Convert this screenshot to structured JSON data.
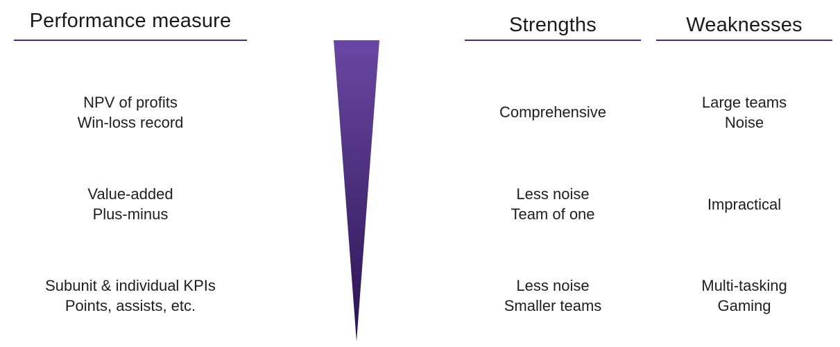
{
  "headers": {
    "performance": "Performance measure",
    "strengths": "Strengths",
    "weaknesses": "Weaknesses"
  },
  "rows": [
    {
      "measure": [
        "NPV of profits",
        "Win-loss record"
      ],
      "strengths": [
        "Comprehensive"
      ],
      "weaknesses": [
        "Large teams",
        "Noise"
      ]
    },
    {
      "measure": [
        "Value-added",
        "Plus-minus"
      ],
      "strengths": [
        "Less noise",
        "Team of one"
      ],
      "weaknesses": [
        "Impractical"
      ]
    },
    {
      "measure": [
        "Subunit & individual KPIs",
        "Points, assists, etc."
      ],
      "strengths": [
        "Less noise",
        "Smaller teams"
      ],
      "weaknesses": [
        "Multi-tasking",
        "Gaming"
      ]
    }
  ],
  "colors": {
    "accent": "#4b2a7e",
    "wedge_top": "#6a47a3",
    "wedge_bottom": "#2a1452"
  }
}
